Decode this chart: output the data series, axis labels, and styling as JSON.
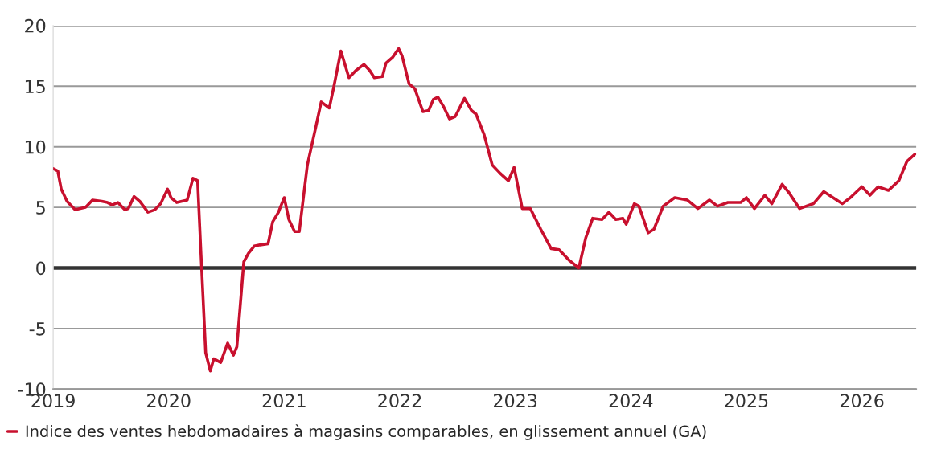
{
  "chart_data": {
    "type": "line",
    "x": [
      2019.0,
      2019.04,
      2019.07,
      2019.12,
      2019.19,
      2019.28,
      2019.34,
      2019.42,
      2019.47,
      2019.51,
      2019.56,
      2019.62,
      2019.65,
      2019.7,
      2019.75,
      2019.82,
      2019.88,
      2019.93,
      2019.99,
      2020.02,
      2020.07,
      2020.16,
      2020.21,
      2020.25,
      2020.28,
      2020.32,
      2020.36,
      2020.39,
      2020.45,
      2020.51,
      2020.56,
      2020.59,
      2020.65,
      2020.69,
      2020.74,
      2020.79,
      2020.86,
      2020.9,
      2020.95,
      2020.97,
      2021.0,
      2021.04,
      2021.09,
      2021.13,
      2021.2,
      2021.27,
      2021.32,
      2021.39,
      2021.43,
      2021.49,
      2021.56,
      2021.62,
      2021.69,
      2021.74,
      2021.78,
      2021.85,
      2021.88,
      2021.94,
      2021.99,
      2022.02,
      2022.08,
      2022.13,
      2022.2,
      2022.25,
      2022.29,
      2022.33,
      2022.38,
      2022.43,
      2022.48,
      2022.56,
      2022.62,
      2022.66,
      2022.73,
      2022.8,
      2022.87,
      2022.94,
      2022.99,
      2023.06,
      2023.13,
      2023.22,
      2023.31,
      2023.38,
      2023.47,
      2023.55,
      2023.61,
      2023.67,
      2023.75,
      2023.81,
      2023.87,
      2023.93,
      2023.96,
      2024.03,
      2024.07,
      2024.15,
      2024.2,
      2024.28,
      2024.38,
      2024.49,
      2024.58,
      2024.68,
      2024.75,
      2024.84,
      2024.95,
      2025.0,
      2025.07,
      2025.16,
      2025.22,
      2025.31,
      2025.37,
      2025.46,
      2025.58,
      2025.67,
      2025.83,
      2025.9,
      2026.0,
      2026.07,
      2026.14,
      2026.23,
      2026.32,
      2026.39,
      2026.46
    ],
    "series": [
      {
        "name": "Indice des ventes hebdomadaires à magasins comparables, en glissement annuel (GA)",
        "color": "#c8102e",
        "values": [
          8.2,
          8.0,
          6.5,
          5.5,
          4.8,
          5.0,
          5.6,
          5.5,
          5.4,
          5.2,
          5.4,
          4.8,
          4.9,
          5.9,
          5.5,
          4.6,
          4.8,
          5.3,
          6.5,
          5.8,
          5.4,
          5.6,
          7.4,
          7.2,
          1,
          -7,
          -8.5,
          -7.5,
          -7.8,
          -6.2,
          -7.2,
          -6.5,
          0.5,
          1.2,
          1.8,
          1.9,
          2.0,
          3.8,
          4.6,
          5.1,
          5.8,
          4,
          3,
          3,
          8.5,
          11.5,
          13.7,
          13.2,
          15,
          17.9,
          15.7,
          16.3,
          16.8,
          16.3,
          15.7,
          15.8,
          16.9,
          17.4,
          18.1,
          17.5,
          15.2,
          14.8,
          12.9,
          13,
          13.9,
          14.1,
          13.3,
          12.3,
          12.5,
          14.0,
          13,
          12.7,
          11,
          8.5,
          7.8,
          7.2,
          8.3,
          4.9,
          4.9,
          3.2,
          1.6,
          1.5,
          0.6,
          0,
          2.5,
          4.1,
          4.0,
          4.6,
          4.0,
          4.1,
          3.6,
          5.3,
          5.1,
          2.9,
          3.2,
          5.1,
          5.8,
          5.6,
          4.9,
          5.6,
          5.1,
          5.4,
          5.4,
          5.8,
          4.9,
          6.0,
          5.3,
          6.9,
          6.2,
          4.9,
          5.3,
          6.3,
          5.3,
          5.8,
          6.7,
          6.0,
          6.7,
          6.4,
          7.2,
          8.8,
          9.4
        ]
      }
    ],
    "xlim": [
      2019,
      2026.47
    ],
    "xticks": [
      2019,
      2020,
      2021,
      2022,
      2023,
      2024,
      2025,
      2026
    ],
    "ylim": [
      -10,
      20
    ],
    "yticks": [
      -10,
      -5,
      0,
      5,
      10,
      15,
      20
    ],
    "grid": "y",
    "legend": "bottom",
    "line_style": "solid",
    "marker": "none",
    "ref_lines": [
      {
        "axis": "y",
        "value": 0,
        "color": "#333333"
      }
    ]
  }
}
